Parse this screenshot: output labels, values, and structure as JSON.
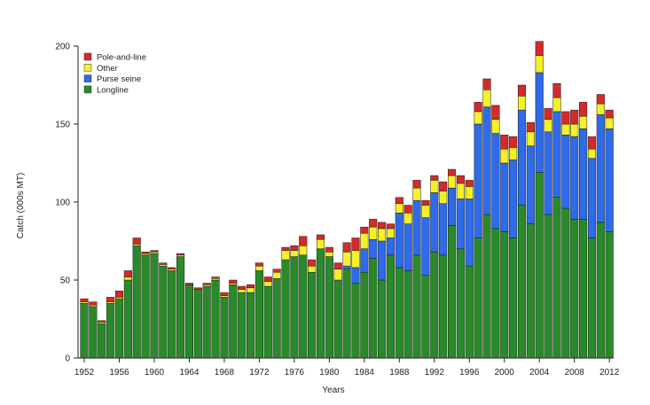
{
  "chart_data": {
    "type": "bar",
    "stacked": true,
    "title": "",
    "xlabel": "Years",
    "ylabel": "Catch (000s MT)",
    "ylim": [
      0,
      200
    ],
    "y_ticks": [
      0,
      50,
      100,
      150,
      200
    ],
    "x_tick_labels": [
      "1952",
      "1956",
      "1960",
      "1964",
      "1968",
      "1972",
      "1976",
      "1980",
      "1984",
      "1988",
      "1992",
      "1996",
      "2000",
      "2004",
      "2008",
      "2012"
    ],
    "legend_position": "top-left",
    "categories": [
      1952,
      1953,
      1954,
      1955,
      1956,
      1957,
      1958,
      1959,
      1960,
      1961,
      1962,
      1963,
      1964,
      1965,
      1966,
      1967,
      1968,
      1969,
      1970,
      1971,
      1972,
      1973,
      1974,
      1975,
      1976,
      1977,
      1978,
      1979,
      1980,
      1981,
      1982,
      1983,
      1984,
      1985,
      1986,
      1987,
      1988,
      1989,
      1990,
      1991,
      1992,
      1993,
      1994,
      1995,
      1996,
      1997,
      1998,
      1999,
      2000,
      2001,
      2002,
      2003,
      2004,
      2005,
      2006,
      2007,
      2008,
      2009,
      2010,
      2011,
      2012
    ],
    "series": [
      {
        "name": "Longline",
        "color": "#2a8a2a",
        "values": [
          35,
          33,
          22,
          35,
          38,
          50,
          72,
          66,
          67,
          59,
          56,
          65,
          47,
          44,
          46,
          50,
          39,
          47,
          42,
          42,
          56,
          46,
          51,
          63,
          65,
          66,
          55,
          70,
          65,
          50,
          57,
          48,
          55,
          64,
          50,
          66,
          58,
          56,
          66,
          53,
          68,
          66,
          85,
          70,
          59,
          77,
          92,
          83,
          81,
          77,
          98,
          86,
          119,
          92,
          103,
          96,
          89,
          89,
          77,
          87,
          81
        ]
      },
      {
        "name": "Purse seine",
        "color": "#2f6be8",
        "values": [
          0,
          0,
          0,
          0,
          0,
          0,
          0,
          0,
          0,
          0,
          0,
          0,
          0,
          0,
          0,
          0,
          0,
          0,
          0,
          0,
          0,
          0,
          0,
          0,
          0,
          0,
          0,
          0,
          0,
          0,
          2,
          10,
          15,
          12,
          25,
          11,
          35,
          30,
          35,
          37,
          38,
          33,
          24,
          32,
          43,
          73,
          69,
          61,
          44,
          50,
          61,
          50,
          64,
          53,
          55,
          47,
          53,
          58,
          51,
          69,
          66
        ]
      },
      {
        "name": "Other",
        "color": "#f4f02a",
        "values": [
          1,
          1,
          1,
          1,
          1,
          2,
          1,
          1,
          1,
          1,
          1,
          1,
          0,
          0,
          1,
          1,
          1,
          1,
          2,
          3,
          3,
          3,
          4,
          6,
          4,
          6,
          4,
          6,
          3,
          7,
          9,
          11,
          10,
          8,
          8,
          6,
          6,
          7,
          8,
          8,
          8,
          8,
          8,
          10,
          8,
          8,
          11,
          9,
          9,
          8,
          9,
          9,
          11,
          8,
          9,
          7,
          8,
          8,
          6,
          7,
          7
        ]
      },
      {
        "name": "Pole-and-line",
        "color": "#d42a2a",
        "values": [
          2,
          2,
          1,
          3,
          4,
          4,
          4,
          1,
          1,
          1,
          1,
          1,
          1,
          1,
          1,
          1,
          2,
          2,
          2,
          2,
          2,
          3,
          2,
          2,
          3,
          6,
          4,
          3,
          3,
          4,
          6,
          8,
          4,
          5,
          4,
          3,
          4,
          5,
          5,
          3,
          3,
          6,
          4,
          5,
          4,
          6,
          7,
          9,
          9,
          7,
          7,
          6,
          9,
          7,
          9,
          8,
          9,
          9,
          8,
          6,
          5
        ]
      }
    ],
    "legend_order": [
      "Pole-and-line",
      "Other",
      "Purse seine",
      "Longline"
    ]
  }
}
